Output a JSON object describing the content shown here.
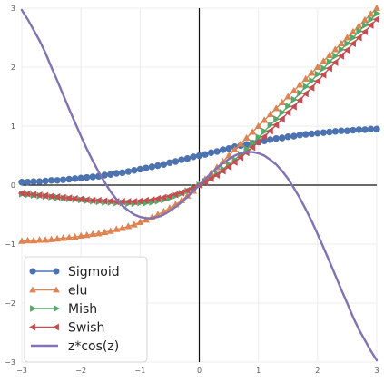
{
  "chart_data": {
    "type": "line",
    "title": "",
    "xlabel": "",
    "ylabel": "",
    "xlim": [
      -3,
      3
    ],
    "ylim": [
      -3,
      3
    ],
    "grid": true,
    "legend_position": "lower-left",
    "x_ticks": [
      -3,
      -2,
      -1,
      0,
      1,
      2,
      3
    ],
    "y_ticks": [
      -3,
      -2,
      -1,
      0,
      1,
      2,
      3
    ],
    "x_tick_labels": [
      "−3",
      "−2",
      "−1",
      "0",
      "1",
      "2",
      "3"
    ],
    "y_tick_labels": [
      "−3",
      "−2",
      "−1",
      "0",
      "1",
      "2",
      "3"
    ],
    "x": [
      -3.0,
      -2.9,
      -2.8,
      -2.7,
      -2.6,
      -2.5,
      -2.4,
      -2.3,
      -2.2,
      -2.1,
      -2.0,
      -1.9,
      -1.8,
      -1.7,
      -1.6,
      -1.5,
      -1.4,
      -1.3,
      -1.2,
      -1.1,
      -1.0,
      -0.9,
      -0.8,
      -0.7,
      -0.6,
      -0.5,
      -0.4,
      -0.3,
      -0.2,
      -0.1,
      0.0,
      0.1,
      0.2,
      0.3,
      0.4,
      0.5,
      0.6,
      0.7,
      0.8,
      0.9,
      1.0,
      1.1,
      1.2,
      1.3,
      1.4,
      1.5,
      1.6,
      1.7,
      1.8,
      1.9,
      2.0,
      2.1,
      2.2,
      2.3,
      2.4,
      2.5,
      2.6,
      2.7,
      2.8,
      2.9,
      3.0
    ],
    "series": [
      {
        "name": "Sigmoid",
        "color": "#4c72b0",
        "marker": "circle",
        "values": [
          0.05,
          0.05,
          0.06,
          0.06,
          0.07,
          0.08,
          0.08,
          0.09,
          0.1,
          0.11,
          0.12,
          0.13,
          0.14,
          0.15,
          0.17,
          0.18,
          0.2,
          0.21,
          0.23,
          0.25,
          0.27,
          0.29,
          0.31,
          0.33,
          0.35,
          0.38,
          0.4,
          0.43,
          0.45,
          0.48,
          0.5,
          0.52,
          0.55,
          0.57,
          0.6,
          0.62,
          0.65,
          0.67,
          0.69,
          0.71,
          0.73,
          0.75,
          0.77,
          0.79,
          0.8,
          0.82,
          0.83,
          0.85,
          0.86,
          0.87,
          0.88,
          0.89,
          0.9,
          0.91,
          0.92,
          0.92,
          0.93,
          0.94,
          0.94,
          0.95,
          0.95
        ]
      },
      {
        "name": "elu",
        "color": "#dd8452",
        "marker": "triangle-up",
        "values": [
          -0.95,
          -0.94,
          -0.94,
          -0.93,
          -0.93,
          -0.92,
          -0.91,
          -0.9,
          -0.89,
          -0.88,
          -0.86,
          -0.85,
          -0.83,
          -0.82,
          -0.8,
          -0.78,
          -0.75,
          -0.73,
          -0.7,
          -0.67,
          -0.63,
          -0.59,
          -0.55,
          -0.5,
          -0.45,
          -0.39,
          -0.33,
          -0.26,
          -0.18,
          -0.1,
          0.0,
          0.1,
          0.2,
          0.3,
          0.4,
          0.5,
          0.6,
          0.7,
          0.8,
          0.9,
          1.0,
          1.1,
          1.2,
          1.3,
          1.4,
          1.5,
          1.6,
          1.7,
          1.8,
          1.9,
          2.0,
          2.1,
          2.2,
          2.3,
          2.4,
          2.5,
          2.6,
          2.7,
          2.8,
          2.9,
          3.0
        ]
      },
      {
        "name": "Mish",
        "color": "#55a868",
        "marker": "triangle-right",
        "values": [
          -0.15,
          -0.16,
          -0.17,
          -0.18,
          -0.19,
          -0.2,
          -0.21,
          -0.22,
          -0.23,
          -0.24,
          -0.25,
          -0.26,
          -0.27,
          -0.28,
          -0.29,
          -0.29,
          -0.3,
          -0.3,
          -0.31,
          -0.31,
          -0.3,
          -0.3,
          -0.29,
          -0.27,
          -0.25,
          -0.22,
          -0.18,
          -0.14,
          -0.1,
          -0.05,
          0.0,
          0.06,
          0.12,
          0.19,
          0.27,
          0.35,
          0.43,
          0.52,
          0.61,
          0.71,
          0.81,
          0.91,
          1.02,
          1.12,
          1.23,
          1.34,
          1.45,
          1.56,
          1.67,
          1.77,
          1.88,
          1.98,
          2.09,
          2.19,
          2.3,
          2.4,
          2.5,
          2.61,
          2.71,
          2.81,
          2.91
        ]
      },
      {
        "name": "Swish",
        "color": "#c44e52",
        "marker": "triangle-left",
        "values": [
          -0.14,
          -0.15,
          -0.16,
          -0.17,
          -0.18,
          -0.19,
          -0.2,
          -0.21,
          -0.22,
          -0.23,
          -0.24,
          -0.25,
          -0.26,
          -0.26,
          -0.27,
          -0.27,
          -0.28,
          -0.28,
          -0.28,
          -0.28,
          -0.27,
          -0.26,
          -0.25,
          -0.23,
          -0.21,
          -0.19,
          -0.16,
          -0.13,
          -0.09,
          -0.05,
          0.0,
          0.05,
          0.11,
          0.17,
          0.24,
          0.31,
          0.39,
          0.47,
          0.55,
          0.64,
          0.73,
          0.82,
          0.92,
          1.02,
          1.12,
          1.23,
          1.33,
          1.44,
          1.55,
          1.65,
          1.76,
          1.87,
          1.98,
          2.08,
          2.19,
          2.29,
          2.4,
          2.5,
          2.6,
          2.71,
          2.81
        ]
      },
      {
        "name": "z*cos(z)",
        "color": "#8172b3",
        "marker": "none",
        "values": [
          2.97,
          2.81,
          2.63,
          2.45,
          2.24,
          2.0,
          1.77,
          1.53,
          1.29,
          1.06,
          0.83,
          0.61,
          0.41,
          0.22,
          0.05,
          -0.11,
          -0.24,
          -0.35,
          -0.43,
          -0.5,
          -0.54,
          -0.56,
          -0.56,
          -0.54,
          -0.5,
          -0.44,
          -0.37,
          -0.29,
          -0.2,
          -0.1,
          0.0,
          0.1,
          0.2,
          0.29,
          0.37,
          0.44,
          0.5,
          0.54,
          0.56,
          0.56,
          0.54,
          0.5,
          0.43,
          0.35,
          0.24,
          0.11,
          -0.05,
          -0.22,
          -0.41,
          -0.61,
          -0.83,
          -1.06,
          -1.29,
          -1.53,
          -1.77,
          -2.0,
          -2.24,
          -2.45,
          -2.63,
          -2.81,
          -2.97
        ]
      }
    ]
  }
}
